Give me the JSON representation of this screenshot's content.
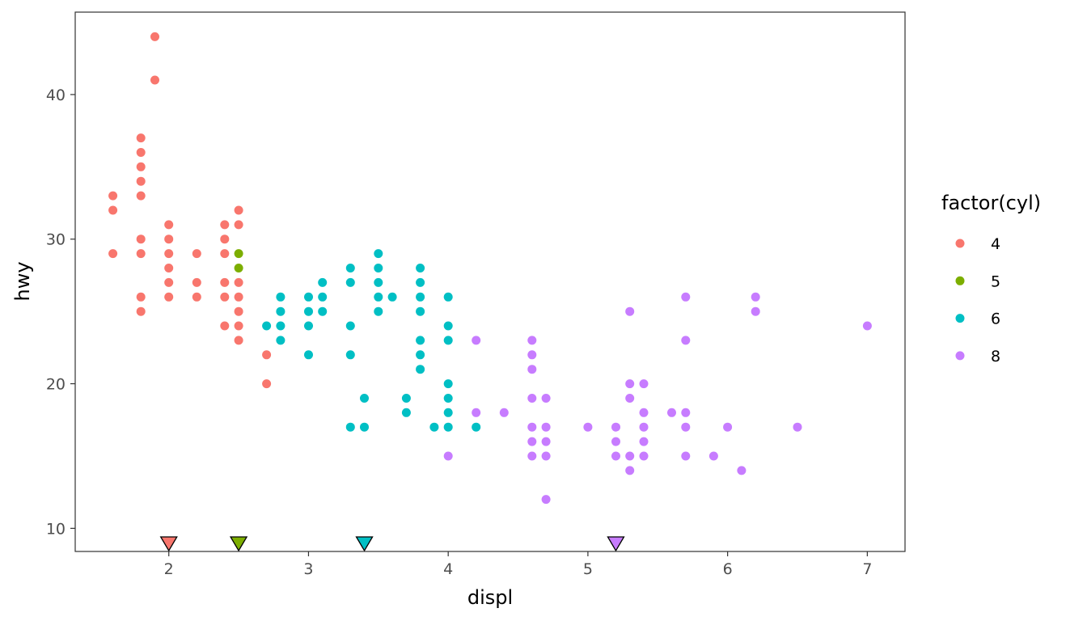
{
  "chart_data": {
    "type": "scatter",
    "title": "",
    "xlabel": "displ",
    "ylabel": "hwy",
    "xlim": [
      1.33,
      7.27
    ],
    "ylim": [
      8.4,
      45.7
    ],
    "x_ticks": [
      2,
      3,
      4,
      5,
      6,
      7
    ],
    "y_ticks": [
      10,
      20,
      30,
      40
    ],
    "grid": false,
    "legend": {
      "title": "factor(cyl)",
      "placement": "right",
      "entries": [
        "4",
        "5",
        "6",
        "8"
      ]
    },
    "colors": {
      "4": "#F8766D",
      "5": "#7CAE00",
      "6": "#00BFC4",
      "8": "#C77CFF"
    },
    "series": [
      {
        "name": "4",
        "points": [
          [
            1.6,
            33
          ],
          [
            1.6,
            32
          ],
          [
            1.6,
            29
          ],
          [
            1.8,
            37
          ],
          [
            1.8,
            36
          ],
          [
            1.8,
            35
          ],
          [
            1.8,
            34
          ],
          [
            1.8,
            33
          ],
          [
            1.8,
            30
          ],
          [
            1.8,
            29
          ],
          [
            1.8,
            26
          ],
          [
            1.8,
            25
          ],
          [
            1.9,
            44
          ],
          [
            1.9,
            41
          ],
          [
            2.0,
            31
          ],
          [
            2.0,
            30
          ],
          [
            2.0,
            29
          ],
          [
            2.0,
            28
          ],
          [
            2.0,
            27
          ],
          [
            2.0,
            26
          ],
          [
            2.2,
            29
          ],
          [
            2.2,
            27
          ],
          [
            2.2,
            26
          ],
          [
            2.4,
            31
          ],
          [
            2.4,
            30
          ],
          [
            2.4,
            29
          ],
          [
            2.4,
            27
          ],
          [
            2.4,
            26
          ],
          [
            2.4,
            24
          ],
          [
            2.5,
            32
          ],
          [
            2.5,
            31
          ],
          [
            2.5,
            27
          ],
          [
            2.5,
            26
          ],
          [
            2.5,
            25
          ],
          [
            2.5,
            24
          ],
          [
            2.5,
            23
          ],
          [
            2.7,
            22
          ],
          [
            2.7,
            20
          ]
        ]
      },
      {
        "name": "5",
        "points": [
          [
            2.5,
            29
          ],
          [
            2.5,
            28
          ]
        ]
      },
      {
        "name": "6",
        "points": [
          [
            2.7,
            24
          ],
          [
            2.8,
            26
          ],
          [
            2.8,
            25
          ],
          [
            2.8,
            24
          ],
          [
            2.8,
            23
          ],
          [
            3.0,
            26
          ],
          [
            3.0,
            25
          ],
          [
            3.0,
            24
          ],
          [
            3.0,
            22
          ],
          [
            3.1,
            27
          ],
          [
            3.1,
            26
          ],
          [
            3.1,
            25
          ],
          [
            3.3,
            28
          ],
          [
            3.3,
            27
          ],
          [
            3.3,
            24
          ],
          [
            3.3,
            22
          ],
          [
            3.3,
            17
          ],
          [
            3.4,
            19
          ],
          [
            3.4,
            17
          ],
          [
            3.5,
            29
          ],
          [
            3.5,
            28
          ],
          [
            3.5,
            27
          ],
          [
            3.5,
            26
          ],
          [
            3.5,
            25
          ],
          [
            3.6,
            26
          ],
          [
            3.7,
            19
          ],
          [
            3.7,
            18
          ],
          [
            3.8,
            28
          ],
          [
            3.8,
            27
          ],
          [
            3.8,
            26
          ],
          [
            3.8,
            25
          ],
          [
            3.8,
            23
          ],
          [
            3.8,
            22
          ],
          [
            3.8,
            21
          ],
          [
            3.9,
            17
          ],
          [
            4.0,
            26
          ],
          [
            4.0,
            24
          ],
          [
            4.0,
            23
          ],
          [
            4.0,
            20
          ],
          [
            4.0,
            19
          ],
          [
            4.0,
            18
          ],
          [
            4.0,
            17
          ],
          [
            4.2,
            17
          ]
        ]
      },
      {
        "name": "8",
        "points": [
          [
            4.0,
            15
          ],
          [
            4.2,
            23
          ],
          [
            4.2,
            18
          ],
          [
            4.4,
            18
          ],
          [
            4.6,
            23
          ],
          [
            4.6,
            22
          ],
          [
            4.6,
            21
          ],
          [
            4.6,
            19
          ],
          [
            4.6,
            17
          ],
          [
            4.6,
            16
          ],
          [
            4.6,
            15
          ],
          [
            4.7,
            19
          ],
          [
            4.7,
            17
          ],
          [
            4.7,
            16
          ],
          [
            4.7,
            15
          ],
          [
            4.7,
            12
          ],
          [
            5.0,
            17
          ],
          [
            5.2,
            17
          ],
          [
            5.2,
            16
          ],
          [
            5.2,
            15
          ],
          [
            5.3,
            25
          ],
          [
            5.3,
            20
          ],
          [
            5.3,
            19
          ],
          [
            5.3,
            15
          ],
          [
            5.3,
            14
          ],
          [
            5.4,
            20
          ],
          [
            5.4,
            18
          ],
          [
            5.4,
            17
          ],
          [
            5.4,
            16
          ],
          [
            5.4,
            15
          ],
          [
            5.6,
            18
          ],
          [
            5.7,
            26
          ],
          [
            5.7,
            23
          ],
          [
            5.7,
            18
          ],
          [
            5.7,
            17
          ],
          [
            5.7,
            15
          ],
          [
            5.9,
            15
          ],
          [
            6.0,
            17
          ],
          [
            6.1,
            14
          ],
          [
            6.2,
            26
          ],
          [
            6.2,
            25
          ],
          [
            6.5,
            17
          ],
          [
            7.0,
            24
          ]
        ]
      }
    ],
    "markers": [
      {
        "series": "4",
        "x": 2.0
      },
      {
        "series": "5",
        "x": 2.5
      },
      {
        "series": "6",
        "x": 3.4
      },
      {
        "series": "8",
        "x": 5.2
      }
    ]
  }
}
